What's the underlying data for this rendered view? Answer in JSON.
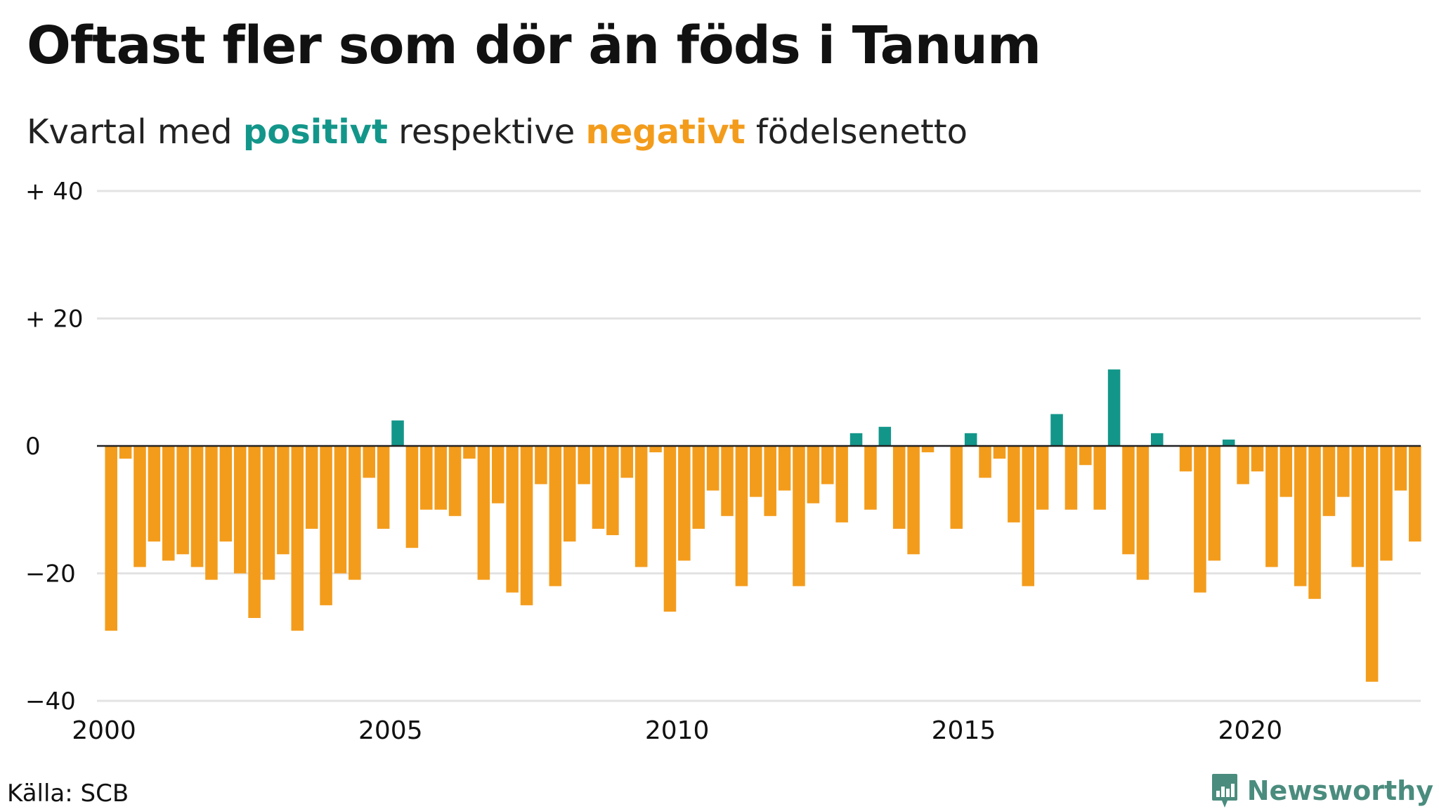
{
  "title": "Oftast fler som dör än föds i Tanum",
  "subtitle": {
    "pre": "Kvartal med",
    "positive_word": "positivt",
    "middle": "respektive",
    "negative_word": "negativt",
    "post": "födelsenetto"
  },
  "source": "Källa: SCB",
  "brand": "Newsworthy",
  "colors": {
    "positive": "#13968a",
    "negative": "#f39c1c",
    "grid": "#e3e3e3",
    "zero_line": "#222222"
  },
  "chart_data": {
    "type": "bar",
    "x_start_year": 2000,
    "x_step": 0.25,
    "values": [
      -29,
      -2,
      -19,
      -15,
      -18,
      -17,
      -19,
      -21,
      -15,
      -20,
      -27,
      -21,
      -17,
      -29,
      -13,
      -25,
      -20,
      -21,
      -5,
      -13,
      4,
      -16,
      -10,
      -10,
      -11,
      -2,
      -21,
      -9,
      -23,
      -25,
      -6,
      -22,
      -15,
      -6,
      -13,
      -14,
      -5,
      -19,
      -1,
      -26,
      -18,
      -13,
      -7,
      -11,
      -22,
      -8,
      -11,
      -7,
      -22,
      -9,
      -6,
      -12,
      2,
      -10,
      3,
      -13,
      -17,
      -1,
      0,
      -13,
      2,
      -5,
      -2,
      -12,
      -22,
      -10,
      5,
      -10,
      -3,
      -10,
      12,
      -17,
      -21,
      2,
      0,
      -4,
      -23,
      -18,
      1,
      -6,
      -4,
      -19,
      -8,
      -22,
      -24,
      -11,
      -8,
      -19,
      -37,
      -18,
      -7,
      -15
    ],
    "ylim": [
      -40,
      40
    ],
    "y_ticks": [
      40,
      20,
      0,
      -20,
      -40
    ],
    "y_tick_labels": [
      "+ 40",
      "+ 20",
      "0",
      "−20",
      "−40"
    ],
    "x_ticks": [
      2000,
      2005,
      2010,
      2015,
      2020
    ],
    "x_tick_labels": [
      "2000",
      "2005",
      "2010",
      "2015",
      "2020"
    ],
    "xlim": [
      2000,
      2023
    ],
    "grid": true
  }
}
